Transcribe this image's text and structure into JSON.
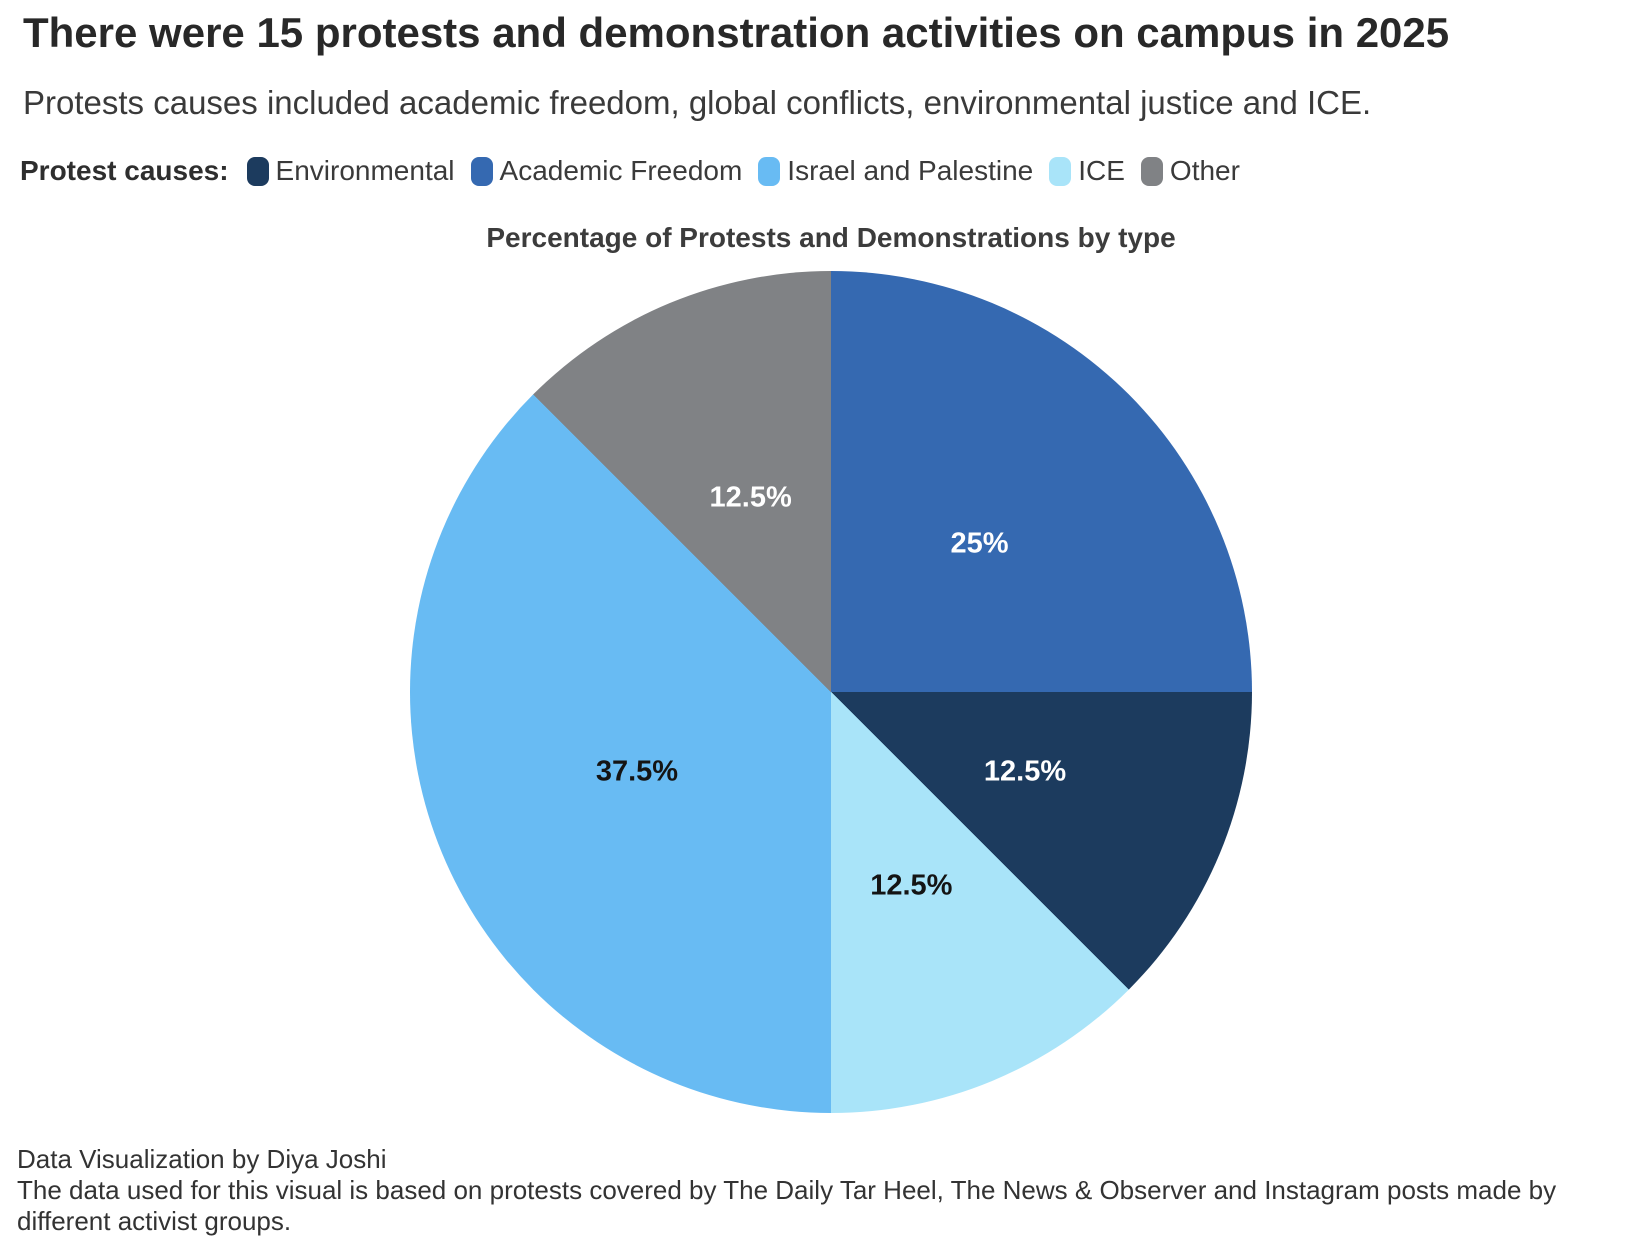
{
  "header": {
    "title": "There were 15 protests and demonstration activities on campus in 2025",
    "subtitle": "Protests causes included academic freedom, global conflicts, environmental justice and ICE."
  },
  "legend": {
    "label": "Protest causes:",
    "items": [
      {
        "label": "Environmental",
        "color": "#1c3b5e"
      },
      {
        "label": "Academic Freedom",
        "color": "#3569b1"
      },
      {
        "label": "Israel and Palestine",
        "color": "#68bbf3"
      },
      {
        "label": "ICE",
        "color": "#a9e4f9"
      },
      {
        "label": "Other",
        "color": "#808285"
      }
    ]
  },
  "chart_data": {
    "type": "pie",
    "title": "Percentage of Protests and Demonstrations by type",
    "start_angle_deg": 0,
    "direction": "clockwise",
    "legend_position": "top",
    "slices": [
      {
        "label": "Academic Freedom",
        "value": 25,
        "display": "25%",
        "color": "#3569b1",
        "text_color": "#ffffff"
      },
      {
        "label": "Environmental",
        "value": 12.5,
        "display": "12.5%",
        "color": "#1c3b5e",
        "text_color": "#ffffff"
      },
      {
        "label": "ICE",
        "value": 12.5,
        "display": "12.5%",
        "color": "#a9e4f9",
        "text_color": "#141414"
      },
      {
        "label": "Israel and Palestine",
        "value": 37.5,
        "display": "37.5%",
        "color": "#68bbf3",
        "text_color": "#141414"
      },
      {
        "label": "Other",
        "value": 12.5,
        "display": "12.5%",
        "color": "#808285",
        "text_color": "#ffffff"
      }
    ]
  },
  "footer": {
    "credit": "Data Visualization by Diya Joshi",
    "source": "The data used for this visual is based on protests covered by The Daily Tar Heel, The News & Observer and Instagram posts made by different activist groups."
  }
}
